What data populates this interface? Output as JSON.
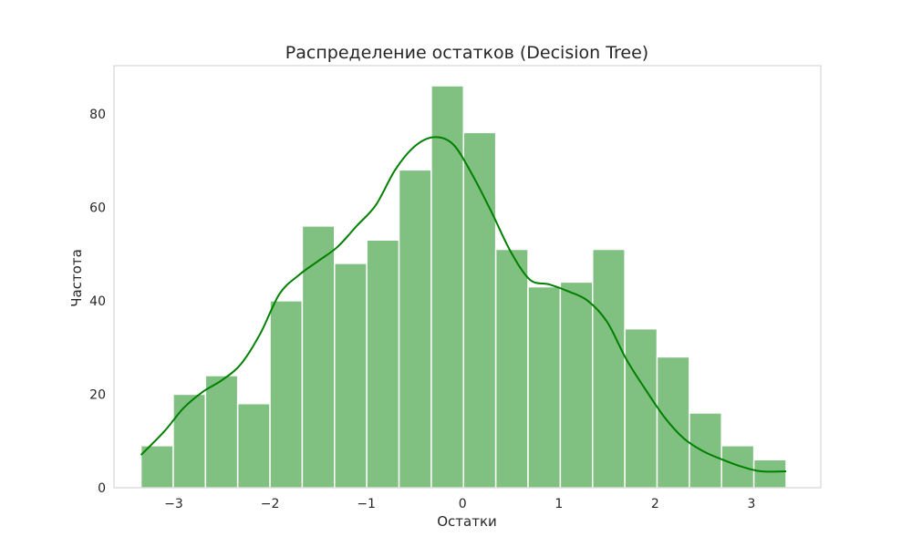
{
  "chart_data": {
    "type": "bar",
    "title": "Распределение остатков (Decision Tree)",
    "xlabel": "Остатки",
    "ylabel": "Частота",
    "xlim": [
      -3.62,
      3.72
    ],
    "ylim": [
      0,
      90.3
    ],
    "grid": false,
    "x_ticks": [
      -3,
      -2,
      -1,
      0,
      1,
      2,
      3
    ],
    "x_tick_labels": [
      "−3",
      "−2",
      "−1",
      "0",
      "1",
      "2",
      "3"
    ],
    "y_ticks": [
      0,
      20,
      40,
      60,
      80
    ],
    "y_tick_labels": [
      "0",
      "20",
      "40",
      "60",
      "80"
    ],
    "bin_edges": [
      -3.34,
      -3.005,
      -2.67,
      -2.335,
      -2.0,
      -1.665,
      -1.33,
      -0.995,
      -0.66,
      -0.325,
      0.01,
      0.345,
      0.68,
      1.015,
      1.35,
      1.685,
      2.02,
      2.355,
      2.69,
      3.025,
      3.36
    ],
    "values": [
      9,
      20,
      24,
      18,
      40,
      56,
      48,
      53,
      68,
      86,
      76,
      51,
      43,
      44,
      51,
      34,
      28,
      16,
      9,
      6
    ],
    "kde": {
      "x": [
        -3.34,
        -3.1,
        -2.9,
        -2.7,
        -2.5,
        -2.3,
        -2.1,
        -1.9,
        -1.7,
        -1.5,
        -1.3,
        -1.1,
        -0.9,
        -0.7,
        -0.5,
        -0.3,
        -0.1,
        0.1,
        0.3,
        0.5,
        0.7,
        0.9,
        1.1,
        1.3,
        1.5,
        1.7,
        1.9,
        2.1,
        2.3,
        2.5,
        2.7,
        2.9,
        3.1,
        3.36
      ],
      "y": [
        7,
        12,
        17,
        20.5,
        23,
        26.5,
        33,
        41.5,
        45.5,
        48.5,
        51.5,
        56,
        60.5,
        68,
        73,
        75,
        73.5,
        67,
        59,
        50.5,
        44.5,
        43.5,
        42,
        40,
        35.5,
        27.5,
        21,
        15,
        10.5,
        7.8,
        6,
        4.5,
        3.5,
        3.5
      ]
    },
    "colors": {
      "bar_fill": "#80c080",
      "bar_edge": "#ffffff",
      "kde_line": "#008000",
      "frame": "#cccccc",
      "text": "#262626"
    }
  }
}
